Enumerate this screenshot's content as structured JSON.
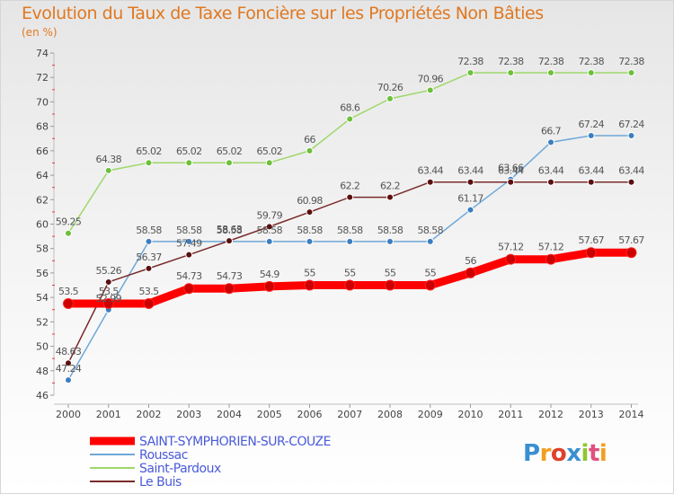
{
  "header": {
    "title": "Evolution du Taux de Taxe Foncière sur les Propriétés Non Bâties",
    "subtitle": "(en %)"
  },
  "logo": {
    "text": "Proxiti",
    "colors": [
      "#3a8fd0",
      "#f0a020",
      "#e0402a",
      "#3a8fd0",
      "#8fc830",
      "#e05080",
      "#f0a020"
    ]
  },
  "chart_data": {
    "type": "line",
    "title": "Evolution du Taux de Taxe Foncière sur les Propriétés Non Bâties",
    "ylabel": "(en %)",
    "x": [
      "2000",
      "2001",
      "2002",
      "2003",
      "2004",
      "2005",
      "2006",
      "2007",
      "2008",
      "2009",
      "2010",
      "2011",
      "2012",
      "2013",
      "2014"
    ],
    "ylim": [
      46,
      74
    ],
    "yticks": [
      46,
      48,
      50,
      52,
      54,
      56,
      58,
      60,
      62,
      64,
      66,
      68,
      70,
      72,
      74
    ],
    "grid": false,
    "legend_position": "bottom-left",
    "series": [
      {
        "name": "SAINT-SYMPHORIEN-SUR-COUZE",
        "color": "#ff0000",
        "point_color": "#cc0000",
        "emphasis": true,
        "values": [
          53.5,
          53.5,
          53.5,
          54.73,
          54.73,
          54.9,
          55,
          55,
          55,
          55,
          56,
          57.12,
          57.12,
          57.67,
          57.67
        ],
        "labels": [
          "53.5",
          "53.5",
          "53.5",
          "54.73",
          "54.73",
          "54.9",
          "55",
          "55",
          "55",
          "55",
          "56",
          "57.12",
          "57.12",
          "57.67",
          "57.67"
        ]
      },
      {
        "name": "Roussac",
        "color": "#6fa8d8",
        "point_color": "#3a7ec0",
        "values": [
          47.24,
          52.99,
          58.58,
          58.58,
          58.58,
          58.58,
          58.58,
          58.58,
          58.58,
          58.58,
          61.17,
          63.66,
          66.7,
          67.24,
          67.24
        ],
        "labels": [
          "47.24",
          "52.99",
          "58.58",
          "58.58",
          "58.58",
          "58.58",
          "58.58",
          "58.58",
          "58.58",
          "58.58",
          "61.17",
          "63.66",
          "66.7",
          "67.24",
          "67.24"
        ]
      },
      {
        "name": "Saint-Pardoux",
        "color": "#9ed86a",
        "point_color": "#6cc03a",
        "values": [
          59.25,
          64.38,
          65.02,
          65.02,
          65.02,
          65.02,
          66,
          68.6,
          70.26,
          70.96,
          72.38,
          72.38,
          72.38,
          72.38,
          72.38
        ],
        "labels": [
          "59.25",
          "64.38",
          "65.02",
          "65.02",
          "65.02",
          "65.02",
          "66",
          "68.6",
          "70.26",
          "70.96",
          "72.38",
          "72.38",
          "72.38",
          "72.38",
          "72.38"
        ]
      },
      {
        "name": "Le Buis",
        "color": "#7a2a2a",
        "point_color": "#5a1010",
        "values": [
          48.63,
          55.26,
          56.37,
          57.49,
          58.63,
          59.79,
          60.98,
          62.2,
          62.2,
          63.44,
          63.44,
          63.44,
          63.44,
          63.44,
          63.44
        ],
        "labels": [
          "48.63",
          "55.26",
          "56.37",
          "57.49",
          "58.63",
          "59.79",
          "60.98",
          "62.2",
          "62.2",
          "63.44",
          "63.44",
          "63.44",
          "63.44",
          "63.44",
          "63.44"
        ]
      }
    ]
  }
}
